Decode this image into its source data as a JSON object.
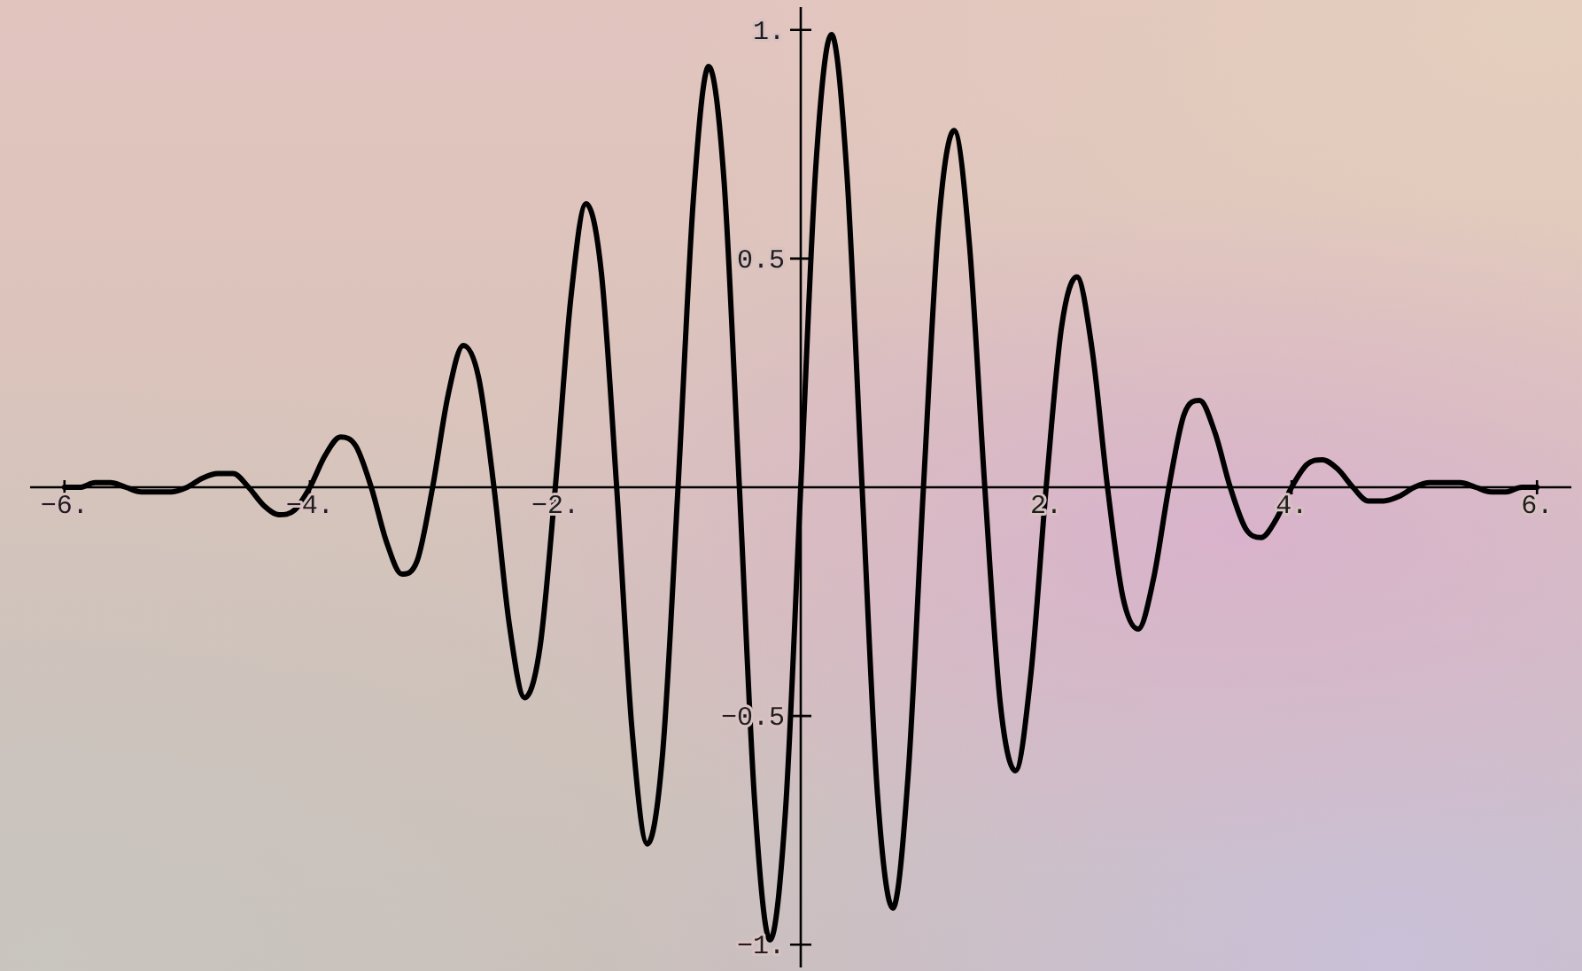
{
  "chart_data": {
    "type": "line",
    "color": "#000000",
    "line_style": "solid",
    "x": [
      -6,
      -5.875,
      -5.75,
      -5.625,
      -5.5,
      -5.375,
      -5.25,
      -5.125,
      -5,
      -4.875,
      -4.75,
      -4.625,
      -4.5,
      -4.375,
      -4.25,
      -4.125,
      -4,
      -3.875,
      -3.75,
      -3.625,
      -3.5,
      -3.375,
      -3.25,
      -3.125,
      -3,
      -2.875,
      -2.75,
      -2.625,
      -2.5,
      -2.375,
      -2.25,
      -2.125,
      -2,
      -1.875,
      -1.75,
      -1.625,
      -1.5,
      -1.375,
      -1.25,
      -1.125,
      -1,
      -0.875,
      -0.75,
      -0.625,
      -0.5,
      -0.375,
      -0.25,
      -0.125,
      0,
      0.125,
      0.25,
      0.375,
      0.5,
      0.625,
      0.75,
      0.875,
      1,
      1.125,
      1.25,
      1.375,
      1.5,
      1.625,
      1.75,
      1.875,
      2,
      2.125,
      2.25,
      2.375,
      2.5,
      2.625,
      2.75,
      2.875,
      3,
      3.125,
      3.25,
      3.375,
      3.5,
      3.625,
      3.75,
      3.875,
      4,
      4.125,
      4.25,
      4.375,
      4.5,
      4.625,
      4.75,
      4.875,
      5,
      5.125,
      5.25,
      5.375,
      5.5,
      5.625,
      5.75,
      5.875,
      6
    ],
    "values": [
      0,
      0,
      0.01,
      0.01,
      0,
      -0.01,
      -0.01,
      -0.01,
      0,
      0.02,
      0.03,
      0.03,
      0,
      -0.04,
      -0.06,
      -0.05,
      0,
      0.07,
      0.11,
      0.09,
      0,
      -0.12,
      -0.19,
      -0.16,
      0,
      0.2,
      0.31,
      0.24,
      0,
      -0.3,
      -0.46,
      -0.35,
      0,
      0.41,
      0.62,
      0.47,
      0,
      -0.53,
      -0.78,
      -0.58,
      0,
      0.63,
      0.92,
      0.67,
      0,
      -0.69,
      -0.99,
      -0.71,
      0,
      0.71,
      0.99,
      0.69,
      0,
      -0.67,
      -0.92,
      -0.63,
      0,
      0.58,
      0.78,
      0.53,
      0,
      -0.47,
      -0.62,
      -0.41,
      0,
      0.35,
      0.46,
      0.3,
      0,
      -0.24,
      -0.31,
      -0.2,
      0,
      0.16,
      0.19,
      0.12,
      0,
      -0.09,
      -0.11,
      -0.07,
      0,
      0.05,
      0.06,
      0.04,
      0,
      -0.03,
      -0.03,
      -0.02,
      0,
      0.01,
      0.01,
      0.01,
      0,
      -0.01,
      -0.01,
      0,
      0
    ],
    "xlim": [
      -6.28,
      6.28
    ],
    "ylim": [
      -1.05,
      1.05
    ],
    "xticks": [
      {
        "value": -6,
        "label": "−6."
      },
      {
        "value": -4,
        "label": "−4."
      },
      {
        "value": -2,
        "label": "−2."
      },
      {
        "value": 2,
        "label": "2."
      },
      {
        "value": 4,
        "label": "4."
      },
      {
        "value": 6,
        "label": "6."
      }
    ],
    "yticks": [
      {
        "value": -1,
        "label": "−1."
      },
      {
        "value": -0.5,
        "label": "−0.5"
      },
      {
        "value": 0.5,
        "label": "0.5"
      },
      {
        "value": 1,
        "label": "1."
      }
    ]
  }
}
